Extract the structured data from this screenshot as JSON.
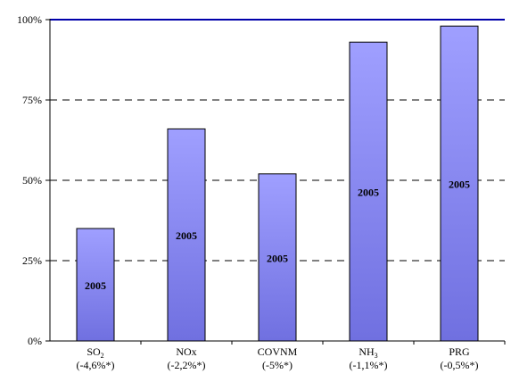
{
  "chart_data": {
    "type": "bar",
    "categories": [
      {
        "main": "SO",
        "sub": "2",
        "suffix": "",
        "change": "(-4,6%*)"
      },
      {
        "main": "NOx",
        "sub": "",
        "suffix": "",
        "change": "(-2,2%*)"
      },
      {
        "main": "COVNM",
        "sub": "",
        "suffix": "",
        "change": "(-5%*)"
      },
      {
        "main": "NH",
        "sub": "3",
        "suffix": "",
        "change": "(-1,1%*)"
      },
      {
        "main": "PRG",
        "sub": "",
        "suffix": "",
        "change": "(-0,5%*)"
      }
    ],
    "values": [
      35,
      66,
      52,
      93,
      98
    ],
    "bar_labels": [
      "2005",
      "2005",
      "2005",
      "2005",
      "2005"
    ],
    "y_ticks": [
      "0%",
      "25%",
      "50%",
      "75%",
      "100%"
    ],
    "y_tick_values": [
      0,
      25,
      50,
      75,
      100
    ],
    "ylim": [
      0,
      100
    ],
    "reference_line": 100,
    "grid": "dashed",
    "colors": {
      "bar_top": "#9f9fff",
      "bar_bottom": "#7070e0",
      "bar_stroke": "#000000",
      "reference_line": "#0000aa",
      "grid": "#000000"
    }
  }
}
